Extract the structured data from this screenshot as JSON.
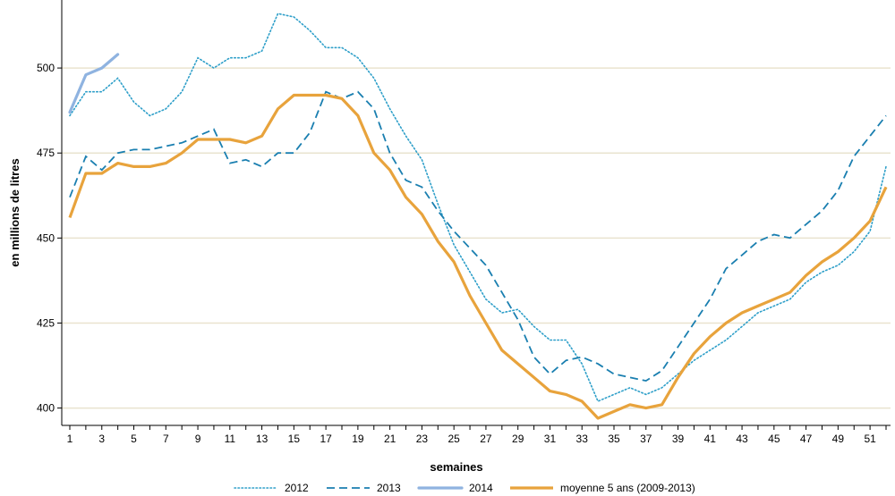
{
  "chart_data": {
    "type": "line",
    "title": "",
    "xlabel": "semaines",
    "ylabel": "en millions de litres",
    "xlim": [
      1,
      52
    ],
    "ylim": [
      397,
      520
    ],
    "grid": "horizontal",
    "yticks": [
      400,
      425,
      450,
      475,
      500
    ],
    "xticks": [
      1,
      3,
      5,
      7,
      9,
      11,
      13,
      15,
      17,
      19,
      21,
      23,
      25,
      27,
      29,
      31,
      33,
      35,
      37,
      39,
      41,
      43,
      45,
      47,
      49,
      51
    ],
    "series": [
      {
        "name": "2012",
        "style": "dotted",
        "color": "#2e9fc9",
        "x": [
          1,
          2,
          3,
          4,
          5,
          6,
          7,
          8,
          9,
          10,
          11,
          12,
          13,
          14,
          15,
          16,
          17,
          18,
          19,
          20,
          21,
          22,
          23,
          24,
          25,
          26,
          27,
          28,
          29,
          30,
          31,
          32,
          33,
          34,
          35,
          36,
          37,
          38,
          39,
          40,
          41,
          42,
          43,
          44,
          45,
          46,
          47,
          48,
          49,
          50,
          51,
          52
        ],
        "values": [
          486,
          493,
          493,
          497,
          490,
          486,
          488,
          493,
          503,
          500,
          503,
          503,
          505,
          516,
          515,
          511,
          506,
          506,
          503,
          497,
          488,
          480,
          473,
          460,
          448,
          440,
          432,
          428,
          429,
          424,
          420,
          420,
          413,
          402,
          404,
          406,
          404,
          406,
          410,
          414,
          417,
          420,
          424,
          428,
          430,
          432,
          437,
          440,
          442,
          446,
          452,
          471
        ]
      },
      {
        "name": "2013",
        "style": "dashed",
        "color": "#1a7fb0",
        "x": [
          1,
          2,
          3,
          4,
          5,
          6,
          7,
          8,
          9,
          10,
          11,
          12,
          13,
          14,
          15,
          16,
          17,
          18,
          19,
          20,
          21,
          22,
          23,
          24,
          25,
          26,
          27,
          28,
          29,
          30,
          31,
          32,
          33,
          34,
          35,
          36,
          37,
          38,
          39,
          40,
          41,
          42,
          43,
          44,
          45,
          46,
          47,
          48,
          49,
          50,
          51,
          52
        ],
        "values": [
          462,
          474,
          470,
          475,
          476,
          476,
          477,
          478,
          480,
          482,
          472,
          473,
          471,
          475,
          475,
          481,
          493,
          491,
          493,
          488,
          475,
          467,
          465,
          458,
          452,
          447,
          442,
          434,
          426,
          415,
          410,
          414,
          415,
          413,
          410,
          409,
          408,
          411,
          418,
          425,
          432,
          441,
          445,
          449,
          451,
          450,
          454,
          458,
          464,
          474,
          480,
          486
        ]
      },
      {
        "name": "2014",
        "style": "solid",
        "color": "#8fb3e0",
        "x": [
          1,
          2,
          3,
          4
        ],
        "values": [
          487,
          498,
          500,
          504
        ]
      },
      {
        "name": "moyenne 5 ans (2009-2013)",
        "style": "thick",
        "color": "#e8a33c",
        "x": [
          1,
          2,
          3,
          4,
          5,
          6,
          7,
          8,
          9,
          10,
          11,
          12,
          13,
          14,
          15,
          16,
          17,
          18,
          19,
          20,
          21,
          22,
          23,
          24,
          25,
          26,
          27,
          28,
          29,
          30,
          31,
          32,
          33,
          34,
          35,
          36,
          37,
          38,
          39,
          40,
          41,
          42,
          43,
          44,
          45,
          46,
          47,
          48,
          49,
          50,
          51,
          52
        ],
        "values": [
          456,
          469,
          469,
          472,
          471,
          471,
          472,
          475,
          479,
          479,
          479,
          478,
          480,
          488,
          492,
          492,
          492,
          491,
          486,
          475,
          470,
          462,
          457,
          449,
          443,
          433,
          425,
          417,
          413,
          409,
          405,
          404,
          402,
          397,
          399,
          401,
          400,
          401,
          409,
          416,
          421,
          425,
          428,
          430,
          432,
          434,
          439,
          443,
          446,
          450,
          455,
          465
        ]
      }
    ]
  }
}
